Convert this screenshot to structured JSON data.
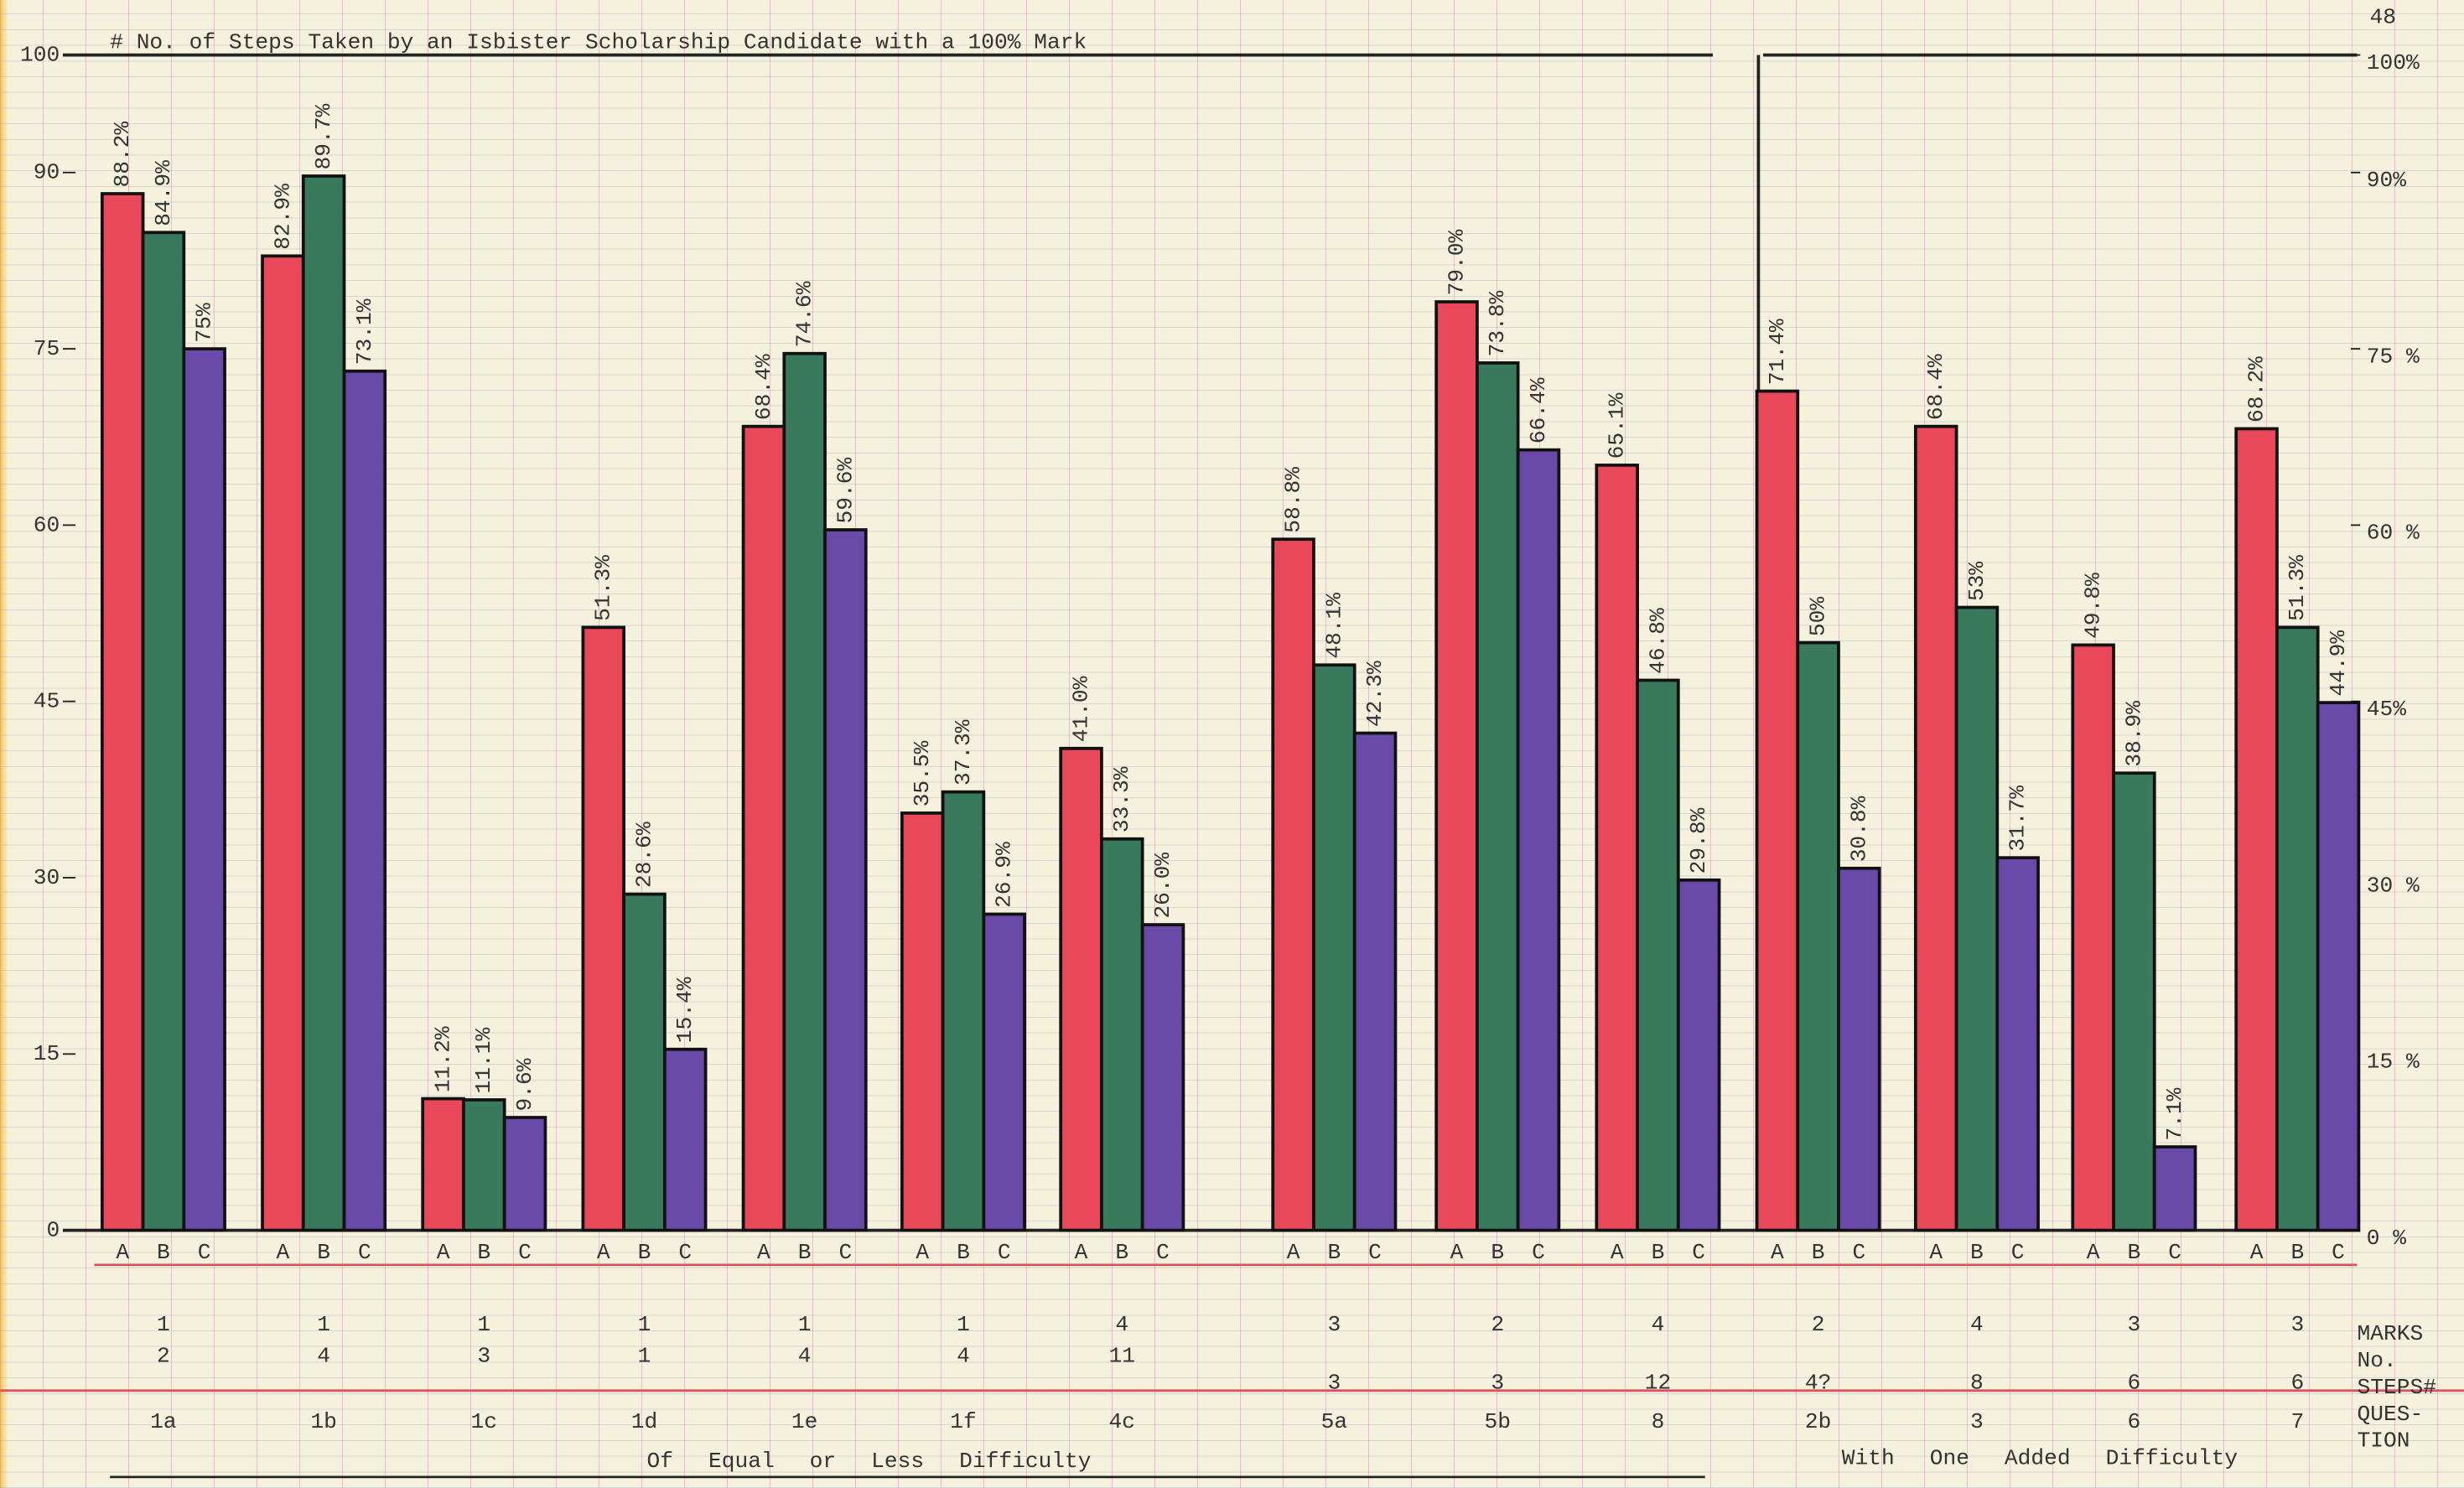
{
  "chart_data": {
    "type": "bar",
    "title": "# No. of Steps Taken by an Isbister Scholarship Candidate with a 100% Mark",
    "corner_note": "48",
    "categories": [
      "1a",
      "1b",
      "1c",
      "1d",
      "1e",
      "1f",
      "4c",
      "5a",
      "5b",
      "8",
      "2b",
      "3",
      "6",
      "7"
    ],
    "marks": [
      1,
      1,
      1,
      1,
      1,
      1,
      4,
      3,
      2,
      4,
      2,
      4,
      3,
      3
    ],
    "steps": [
      2,
      4,
      3,
      1,
      4,
      4,
      11,
      3,
      3,
      12,
      "4?",
      8,
      6,
      6
    ],
    "row_labels": {
      "marks": "MARKS",
      "steps": [
        "No.",
        "STEPS#"
      ],
      "question": [
        "QUES-",
        "TION"
      ]
    },
    "group_captions": [
      "Of Equal or Less Difficulty",
      "With One Added Difficulty"
    ],
    "series": [
      {
        "name": "A",
        "color": "#e8485a",
        "values": [
          88.2,
          82.9,
          11.2,
          51.3,
          68.4,
          35.5,
          41.0,
          58.8,
          79.0,
          65.1,
          71.4,
          68.4,
          49.8,
          68.2
        ],
        "value_labels": [
          "88.2%",
          "82.9%",
          "11.2%",
          "51.3%",
          "68.4%",
          "35.5%",
          "41.0%",
          "58.8%",
          "79.0%",
          "65.1%",
          "71.4%",
          "68.4%",
          "49.8%",
          "68.2%"
        ]
      },
      {
        "name": "B",
        "color": "#3a7a5c",
        "values": [
          84.9,
          89.7,
          11.1,
          28.6,
          74.6,
          37.3,
          33.3,
          48.1,
          73.8,
          46.8,
          50,
          53,
          38.9,
          51.3
        ],
        "value_labels": [
          "84.9%",
          "89.7%",
          "11.1%",
          "28.6%",
          "74.6%",
          "37.3%",
          "33.3%",
          "48.1%",
          "73.8%",
          "46.8%",
          "50%",
          "53%",
          "38.9%",
          "51.3%"
        ]
      },
      {
        "name": "C",
        "color": "#6a4aa8",
        "values": [
          75,
          73.1,
          9.6,
          15.4,
          59.6,
          26.9,
          26.0,
          42.3,
          66.4,
          29.8,
          30.8,
          31.7,
          7.1,
          44.9
        ],
        "value_labels": [
          "75%",
          "73.1%",
          "9.6%",
          "15.4%",
          "59.6%",
          "26.9%",
          "26.0%",
          "42.3%",
          "66.4%",
          "29.8%",
          "30.8%",
          "31.7%",
          "7.1%",
          "44.9%"
        ]
      }
    ],
    "ylim": [
      0,
      100
    ],
    "yticks": [
      0,
      15,
      30,
      45,
      60,
      75,
      90,
      100
    ],
    "y2lim": [
      0,
      100
    ],
    "y2ticks": [
      {
        "value": 0,
        "label": "0 %"
      },
      {
        "value": 15,
        "label": "15 %"
      },
      {
        "value": 30,
        "label": "30 %"
      },
      {
        "value": 45,
        "label": "45%"
      },
      {
        "value": 60,
        "label": "60 %"
      },
      {
        "value": 75,
        "label": "75 %"
      },
      {
        "value": 90,
        "label": "90%"
      },
      {
        "value": 100,
        "label": "100%"
      }
    ]
  }
}
